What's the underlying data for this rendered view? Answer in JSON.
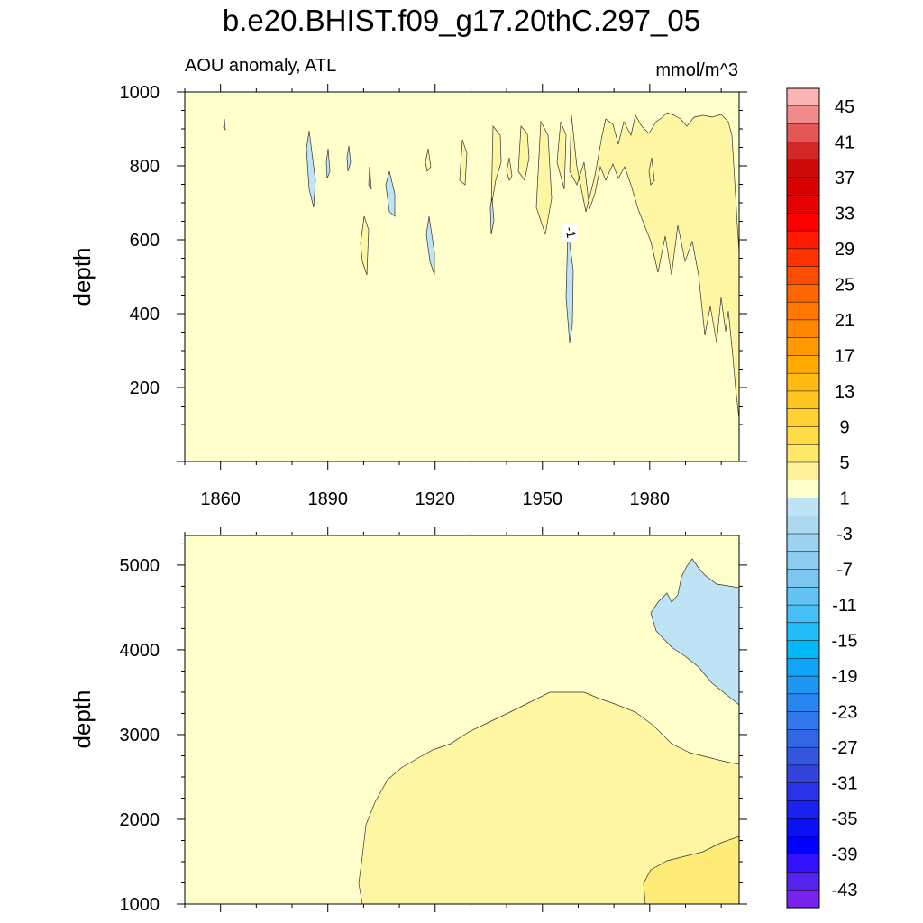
{
  "title": "b.e20.BHIST.f09_g17.20thC.297_05",
  "left_string": "AOU anomaly, ATL",
  "right_string": "mmol/m^3",
  "contour_label": "-1",
  "colors": {
    "background_fill": "#ffffcc",
    "fill_1_to_3": "#fff6a3",
    "fill_3_to_5": "#ffec77",
    "fill_neg": "#bde3f4",
    "contour_line": "#333333"
  },
  "chart_data": [
    {
      "type": "heatmap",
      "panel": "upper",
      "xlabel": "",
      "ylabel": "depth",
      "xlim": [
        1850,
        2005
      ],
      "ylim": [
        1000,
        0
      ],
      "x_ticks": [
        1860,
        1890,
        1920,
        1950,
        1980
      ],
      "y_ticks": [
        200,
        400,
        600,
        800,
        1000
      ]
    },
    {
      "type": "heatmap",
      "panel": "lower",
      "xlabel": "",
      "ylabel": "depth",
      "xlim": [
        1850,
        2005
      ],
      "ylim": [
        5350,
        1000
      ],
      "y_ticks": [
        1000,
        2000,
        3000,
        4000,
        5000
      ]
    },
    {
      "type": "colorbar",
      "levels": [
        45,
        43,
        41,
        39,
        37,
        35,
        33,
        31,
        29,
        27,
        25,
        23,
        21,
        19,
        17,
        15,
        13,
        11,
        9,
        7,
        5,
        3,
        1,
        -1,
        -3,
        -5,
        -7,
        -9,
        -11,
        -13,
        -15,
        -17,
        -19,
        -21,
        -23,
        -25,
        -27,
        -29,
        -31,
        -33,
        -35,
        -37,
        -39,
        -41,
        -43,
        -45
      ],
      "labels": [
        "45",
        "41",
        "37",
        "33",
        "29",
        "25",
        "21",
        "17",
        "13",
        "9",
        "5",
        "1",
        "-3",
        "-7",
        "-11",
        "-15",
        "-19",
        "-23",
        "-27",
        "-31",
        "-35",
        "-39",
        "-43"
      ],
      "colors": [
        "#fbb4b4",
        "#f08c8c",
        "#e35757",
        "#d42828",
        "#cc0a0a",
        "#d90000",
        "#e60000",
        "#ff0000",
        "#ff1a00",
        "#ff3300",
        "#ff4d00",
        "#ff6600",
        "#ff7700",
        "#ff8800",
        "#ff9900",
        "#ffaa00",
        "#ffbb11",
        "#ffc622",
        "#ffd233",
        "#ffdd44",
        "#ffe866",
        "#fff199",
        "#ffffcc",
        "#bde3f4",
        "#add9f0",
        "#9dd2f0",
        "#8dcbf0",
        "#7dc6f0",
        "#63c4f4",
        "#44c0f6",
        "#22bcf8",
        "#00b8f8",
        "#10a6f8",
        "#1e96f4",
        "#2886f0",
        "#3077ec",
        "#3366e6",
        "#3355e0",
        "#3344dd",
        "#2a33e8",
        "#1a22f0",
        "#0a11f6",
        "#0000ff",
        "#3311ff",
        "#5522ee",
        "#7722ee"
      ]
    }
  ]
}
